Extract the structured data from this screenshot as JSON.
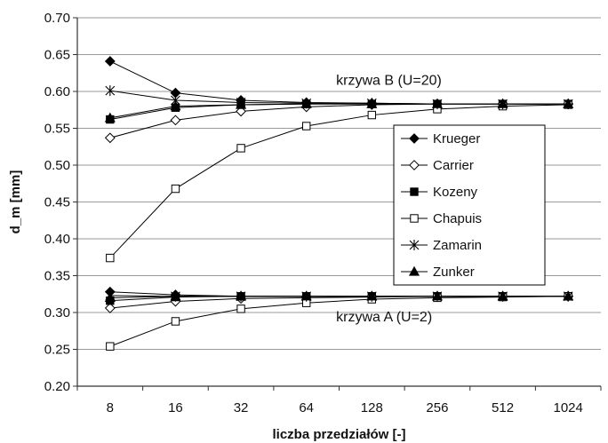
{
  "chart_data": {
    "type": "line",
    "xlabel": "liczba przedziałów [-]",
    "ylabel": "d_m [mm]",
    "categories": [
      "8",
      "16",
      "32",
      "64",
      "128",
      "256",
      "512",
      "1024"
    ],
    "ylim": [
      0.2,
      0.7
    ],
    "yticks": [
      "0.20",
      "0.25",
      "0.30",
      "0.35",
      "0.40",
      "0.45",
      "0.50",
      "0.55",
      "0.60",
      "0.65",
      "0.70"
    ],
    "grid": "horizontal",
    "legend_position": "right",
    "annotations": [
      {
        "text": "krzywa B (U=20)",
        "x_index": 3.4,
        "y": 0.615
      },
      {
        "text": "krzywa A (U=2)",
        "x_index": 3.4,
        "y": 0.294
      }
    ],
    "series": [
      {
        "name": "Krueger",
        "marker": "diamond-filled",
        "curve": "B",
        "values": [
          0.641,
          0.598,
          0.588,
          0.585,
          0.584,
          0.583,
          0.583,
          0.583
        ]
      },
      {
        "name": "Carrier",
        "marker": "diamond-open",
        "curve": "B",
        "values": [
          0.537,
          0.561,
          0.573,
          0.579,
          0.582,
          0.583,
          0.583,
          0.583
        ]
      },
      {
        "name": "Kozeny",
        "marker": "square-filled",
        "curve": "B",
        "values": [
          0.562,
          0.578,
          0.582,
          0.583,
          0.583,
          0.583,
          0.583,
          0.583
        ]
      },
      {
        "name": "Chapuis",
        "marker": "square-open",
        "curve": "B",
        "values": [
          0.374,
          0.468,
          0.523,
          0.553,
          0.568,
          0.576,
          0.58,
          0.582
        ]
      },
      {
        "name": "Zamarin",
        "marker": "star",
        "curve": "B",
        "values": [
          0.601,
          0.588,
          0.585,
          0.584,
          0.584,
          0.583,
          0.583,
          0.583
        ]
      },
      {
        "name": "Zunker",
        "marker": "triangle-filled",
        "curve": "B",
        "values": [
          0.564,
          0.58,
          0.582,
          0.583,
          0.583,
          0.583,
          0.583,
          0.583
        ]
      },
      {
        "name": "Krueger",
        "marker": "diamond-filled",
        "curve": "A",
        "values": [
          0.328,
          0.324,
          0.322,
          0.322,
          0.322,
          0.322,
          0.322,
          0.322
        ]
      },
      {
        "name": "Carrier",
        "marker": "diamond-open",
        "curve": "A",
        "values": [
          0.306,
          0.315,
          0.319,
          0.32,
          0.321,
          0.322,
          0.322,
          0.322
        ]
      },
      {
        "name": "Kozeny",
        "marker": "square-filled",
        "curve": "A",
        "values": [
          0.316,
          0.321,
          0.322,
          0.322,
          0.322,
          0.322,
          0.322,
          0.322
        ]
      },
      {
        "name": "Chapuis",
        "marker": "square-open",
        "curve": "A",
        "values": [
          0.254,
          0.288,
          0.305,
          0.313,
          0.318,
          0.32,
          0.321,
          0.322
        ]
      },
      {
        "name": "Zamarin",
        "marker": "star",
        "curve": "A",
        "values": [
          0.323,
          0.322,
          0.322,
          0.322,
          0.322,
          0.322,
          0.322,
          0.322
        ]
      },
      {
        "name": "Zunker",
        "marker": "triangle-filled",
        "curve": "A",
        "values": [
          0.32,
          0.322,
          0.322,
          0.322,
          0.322,
          0.322,
          0.322,
          0.322
        ]
      }
    ],
    "legend": [
      "Krueger",
      "Carrier",
      "Kozeny",
      "Chapuis",
      "Zamarin",
      "Zunker"
    ]
  }
}
